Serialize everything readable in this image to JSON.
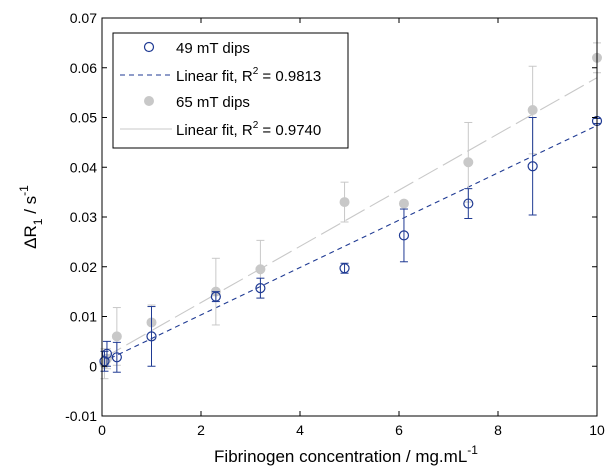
{
  "chart_data": {
    "type": "scatter",
    "xlabel": "Fibrinogen concentration / mg.mL",
    "xlabel_sup": "-1",
    "ylabel_main": "ΔR",
    "ylabel_sub": "1",
    "ylabel_tail": " / s",
    "ylabel_sup": "-1",
    "xlim": [
      0,
      10
    ],
    "ylim": [
      -0.01,
      0.07
    ],
    "xticks": [
      0,
      2,
      4,
      6,
      8,
      10
    ],
    "xtick_labels": [
      "0",
      "2",
      "4",
      "6",
      "8",
      "10"
    ],
    "yticks": [
      -0.01,
      0,
      0.01,
      0.02,
      0.03,
      0.04,
      0.05,
      0.06,
      0.07
    ],
    "ytick_labels": [
      "-0.01",
      "0",
      "0.01",
      "0.02",
      "0.03",
      "0.04",
      "0.05",
      "0.06",
      "0.07"
    ],
    "grid": false,
    "legend_position": "top-left",
    "series": [
      {
        "name": "49 mT dips",
        "kind": "points",
        "marker": "open-circle",
        "color": "#1f3a93",
        "x": [
          0.05,
          0.1,
          0.3,
          1.0,
          2.3,
          3.2,
          4.9,
          6.1,
          7.4,
          8.7,
          10.0
        ],
        "y": [
          0.001,
          0.0025,
          0.0018,
          0.006,
          0.014,
          0.0157,
          0.0197,
          0.0263,
          0.0327,
          0.0402,
          0.0493
        ],
        "err": [
          0.002,
          0.0025,
          0.003,
          0.006,
          0.001,
          0.002,
          0.001,
          0.0053,
          0.003,
          0.0098,
          0.0005
        ]
      },
      {
        "name": "Linear fit, R",
        "name_sup": "2",
        "name_tail": " = 0.9813",
        "kind": "line",
        "style": "dashed",
        "color": "#1f3a93",
        "x": [
          0,
          10
        ],
        "y": [
          0.0008,
          0.0484
        ]
      },
      {
        "name": "65 mT dips",
        "kind": "points",
        "marker": "filled-circle",
        "color": "#c8c8c8",
        "x": [
          0.05,
          0.1,
          0.3,
          1.0,
          2.3,
          3.2,
          4.9,
          6.1,
          7.4,
          8.7,
          10.0
        ],
        "y": [
          0.0005,
          0.0015,
          0.006,
          0.0088,
          0.015,
          0.0195,
          0.033,
          0.0327,
          0.041,
          0.0515,
          0.062
        ],
        "err": [
          0.003,
          0.002,
          0.0058,
          0.0035,
          0.0067,
          0.0058,
          0.004,
          0.0005,
          0.008,
          0.0088,
          0.003
        ]
      },
      {
        "name": "Linear fit, R",
        "name_sup": "2",
        "name_tail": " = 0.9740",
        "kind": "line",
        "style": "long-dash",
        "color": "#c8c8c8",
        "x": [
          0,
          10
        ],
        "y": [
          0.0015,
          0.058
        ]
      }
    ]
  }
}
